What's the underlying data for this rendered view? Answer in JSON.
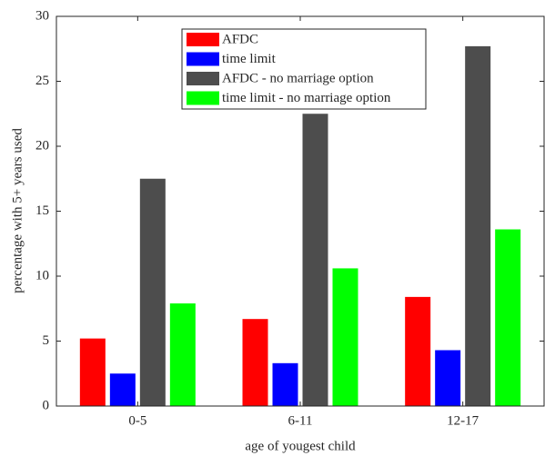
{
  "chart_data": {
    "type": "bar",
    "xlabel": "age of yougest child",
    "ylabel": "percentage with 5+ years used",
    "categories": [
      "0-5",
      "6-11",
      "12-17"
    ],
    "series": [
      {
        "name": "AFDC",
        "color": "#ff0000",
        "values": [
          5.2,
          6.7,
          8.4
        ]
      },
      {
        "name": "time limit",
        "color": "#0000ff",
        "values": [
          2.5,
          3.3,
          4.3
        ]
      },
      {
        "name": "AFDC - no marriage option",
        "color": "#4d4d4d",
        "values": [
          17.5,
          22.5,
          27.7
        ]
      },
      {
        "name": "time limit - no marriage option",
        "color": "#00ff00",
        "values": [
          7.9,
          10.6,
          13.6
        ]
      }
    ],
    "ylim": [
      0,
      30
    ],
    "yticks": [
      0,
      5,
      10,
      15,
      20,
      25,
      30
    ],
    "grid": false,
    "legend": "top"
  }
}
